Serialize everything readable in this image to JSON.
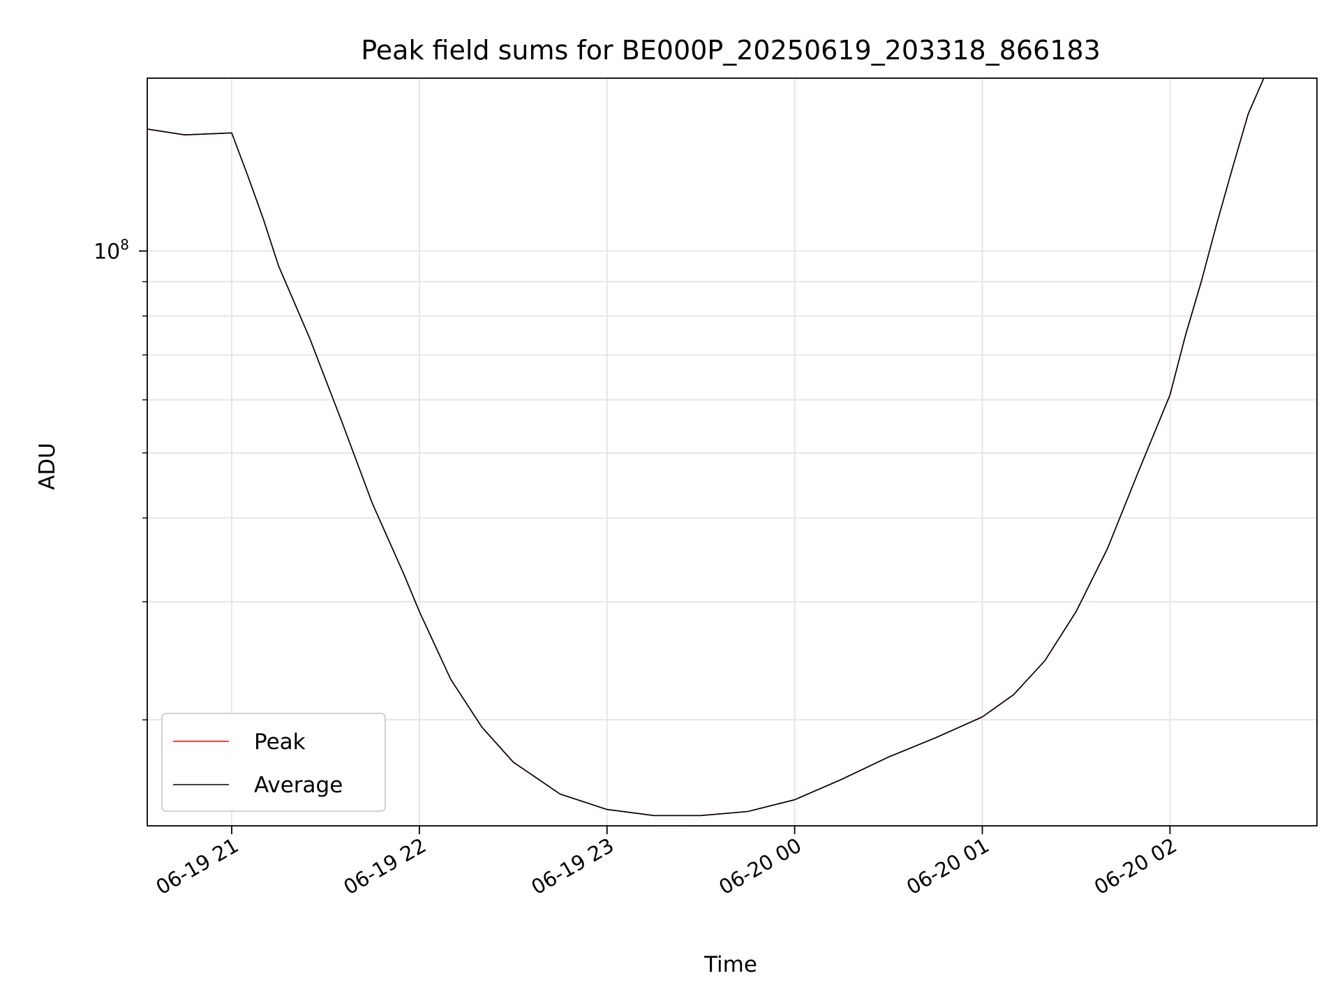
{
  "chart_data": {
    "type": "line",
    "title": "Peak field sums for BE000P_20250619_203318_866183",
    "xlabel": "Time",
    "ylabel": "ADU",
    "x_axis": {
      "type": "datetime",
      "range": [
        "2025-06-19 20:33",
        "2025-06-20 02:47"
      ],
      "ticks": [
        {
          "value": "2025-06-19 21:00",
          "label": "06-19 21"
        },
        {
          "value": "2025-06-19 22:00",
          "label": "06-19 22"
        },
        {
          "value": "2025-06-19 23:00",
          "label": "06-19 23"
        },
        {
          "value": "2025-06-20 00:00",
          "label": "06-20 00"
        },
        {
          "value": "2025-06-20 01:00",
          "label": "06-20 01"
        },
        {
          "value": "2025-06-20 02:00",
          "label": "06-20 02"
        }
      ]
    },
    "y_axis": {
      "scale": "log",
      "range": [
        13900000,
        181000000
      ],
      "major_ticks": [
        {
          "value": 100000000,
          "base": "10",
          "exponent": "8"
        }
      ],
      "minor_ticks": [
        20000000,
        30000000,
        40000000,
        50000000,
        60000000,
        70000000,
        80000000,
        90000000,
        200000000
      ]
    },
    "grid": true,
    "legend": {
      "position": "lower-left",
      "entries": [
        "Peak",
        "Average"
      ]
    },
    "series": [
      {
        "name": "Peak",
        "color": "#ff0000",
        "points": [
          [
            "2025-06-19 20:33",
            152000000
          ],
          [
            "2025-06-19 20:45",
            149000000
          ],
          [
            "2025-06-19 21:00",
            150000000
          ],
          [
            "2025-06-19 21:05",
            130000000
          ],
          [
            "2025-06-19 21:10",
            112000000
          ],
          [
            "2025-06-19 21:15",
            95000000
          ],
          [
            "2025-06-19 21:25",
            74000000
          ],
          [
            "2025-06-19 21:35",
            56000000
          ],
          [
            "2025-06-19 21:45",
            42000000
          ],
          [
            "2025-06-19 21:55",
            33000000
          ],
          [
            "2025-06-19 22:00",
            29000000
          ],
          [
            "2025-06-19 22:10",
            23000000
          ],
          [
            "2025-06-19 22:20",
            19500000
          ],
          [
            "2025-06-19 22:30",
            17300000
          ],
          [
            "2025-06-19 22:45",
            15500000
          ],
          [
            "2025-06-19 23:00",
            14700000
          ],
          [
            "2025-06-19 23:15",
            14400000
          ],
          [
            "2025-06-19 23:30",
            14400000
          ],
          [
            "2025-06-19 23:45",
            14600000
          ],
          [
            "2025-06-20 00:00",
            15200000
          ],
          [
            "2025-06-20 00:15",
            16300000
          ],
          [
            "2025-06-20 00:30",
            17600000
          ],
          [
            "2025-06-20 00:45",
            18800000
          ],
          [
            "2025-06-20 01:00",
            20200000
          ],
          [
            "2025-06-20 01:10",
            21800000
          ],
          [
            "2025-06-20 01:20",
            24500000
          ],
          [
            "2025-06-20 01:30",
            29000000
          ],
          [
            "2025-06-20 01:40",
            36000000
          ],
          [
            "2025-06-20 01:50",
            47000000
          ],
          [
            "2025-06-20 02:00",
            61000000
          ],
          [
            "2025-06-20 02:05",
            75000000
          ],
          [
            "2025-06-20 02:10",
            90000000
          ],
          [
            "2025-06-20 02:15",
            110000000
          ],
          [
            "2025-06-20 02:20",
            133000000
          ],
          [
            "2025-06-20 02:25",
            160000000
          ],
          [
            "2025-06-20 02:30",
            181000000
          ]
        ]
      },
      {
        "name": "Average",
        "color": "#000000",
        "points": [
          [
            "2025-06-19 20:33",
            152000000
          ],
          [
            "2025-06-19 20:45",
            149000000
          ],
          [
            "2025-06-19 21:00",
            150000000
          ],
          [
            "2025-06-19 21:05",
            130000000
          ],
          [
            "2025-06-19 21:10",
            112000000
          ],
          [
            "2025-06-19 21:15",
            95000000
          ],
          [
            "2025-06-19 21:25",
            74000000
          ],
          [
            "2025-06-19 21:35",
            56000000
          ],
          [
            "2025-06-19 21:45",
            42000000
          ],
          [
            "2025-06-19 21:55",
            33000000
          ],
          [
            "2025-06-19 22:00",
            29000000
          ],
          [
            "2025-06-19 22:10",
            23000000
          ],
          [
            "2025-06-19 22:20",
            19500000
          ],
          [
            "2025-06-19 22:30",
            17300000
          ],
          [
            "2025-06-19 22:45",
            15500000
          ],
          [
            "2025-06-19 23:00",
            14700000
          ],
          [
            "2025-06-19 23:15",
            14400000
          ],
          [
            "2025-06-19 23:30",
            14400000
          ],
          [
            "2025-06-19 23:45",
            14600000
          ],
          [
            "2025-06-20 00:00",
            15200000
          ],
          [
            "2025-06-20 00:15",
            16300000
          ],
          [
            "2025-06-20 00:30",
            17600000
          ],
          [
            "2025-06-20 00:45",
            18800000
          ],
          [
            "2025-06-20 01:00",
            20200000
          ],
          [
            "2025-06-20 01:10",
            21800000
          ],
          [
            "2025-06-20 01:20",
            24500000
          ],
          [
            "2025-06-20 01:30",
            29000000
          ],
          [
            "2025-06-20 01:40",
            36000000
          ],
          [
            "2025-06-20 01:50",
            47000000
          ],
          [
            "2025-06-20 02:00",
            61000000
          ],
          [
            "2025-06-20 02:05",
            75000000
          ],
          [
            "2025-06-20 02:10",
            90000000
          ],
          [
            "2025-06-20 02:15",
            110000000
          ],
          [
            "2025-06-20 02:20",
            133000000
          ],
          [
            "2025-06-20 02:25",
            160000000
          ],
          [
            "2025-06-20 02:30",
            181000000
          ]
        ]
      }
    ]
  }
}
